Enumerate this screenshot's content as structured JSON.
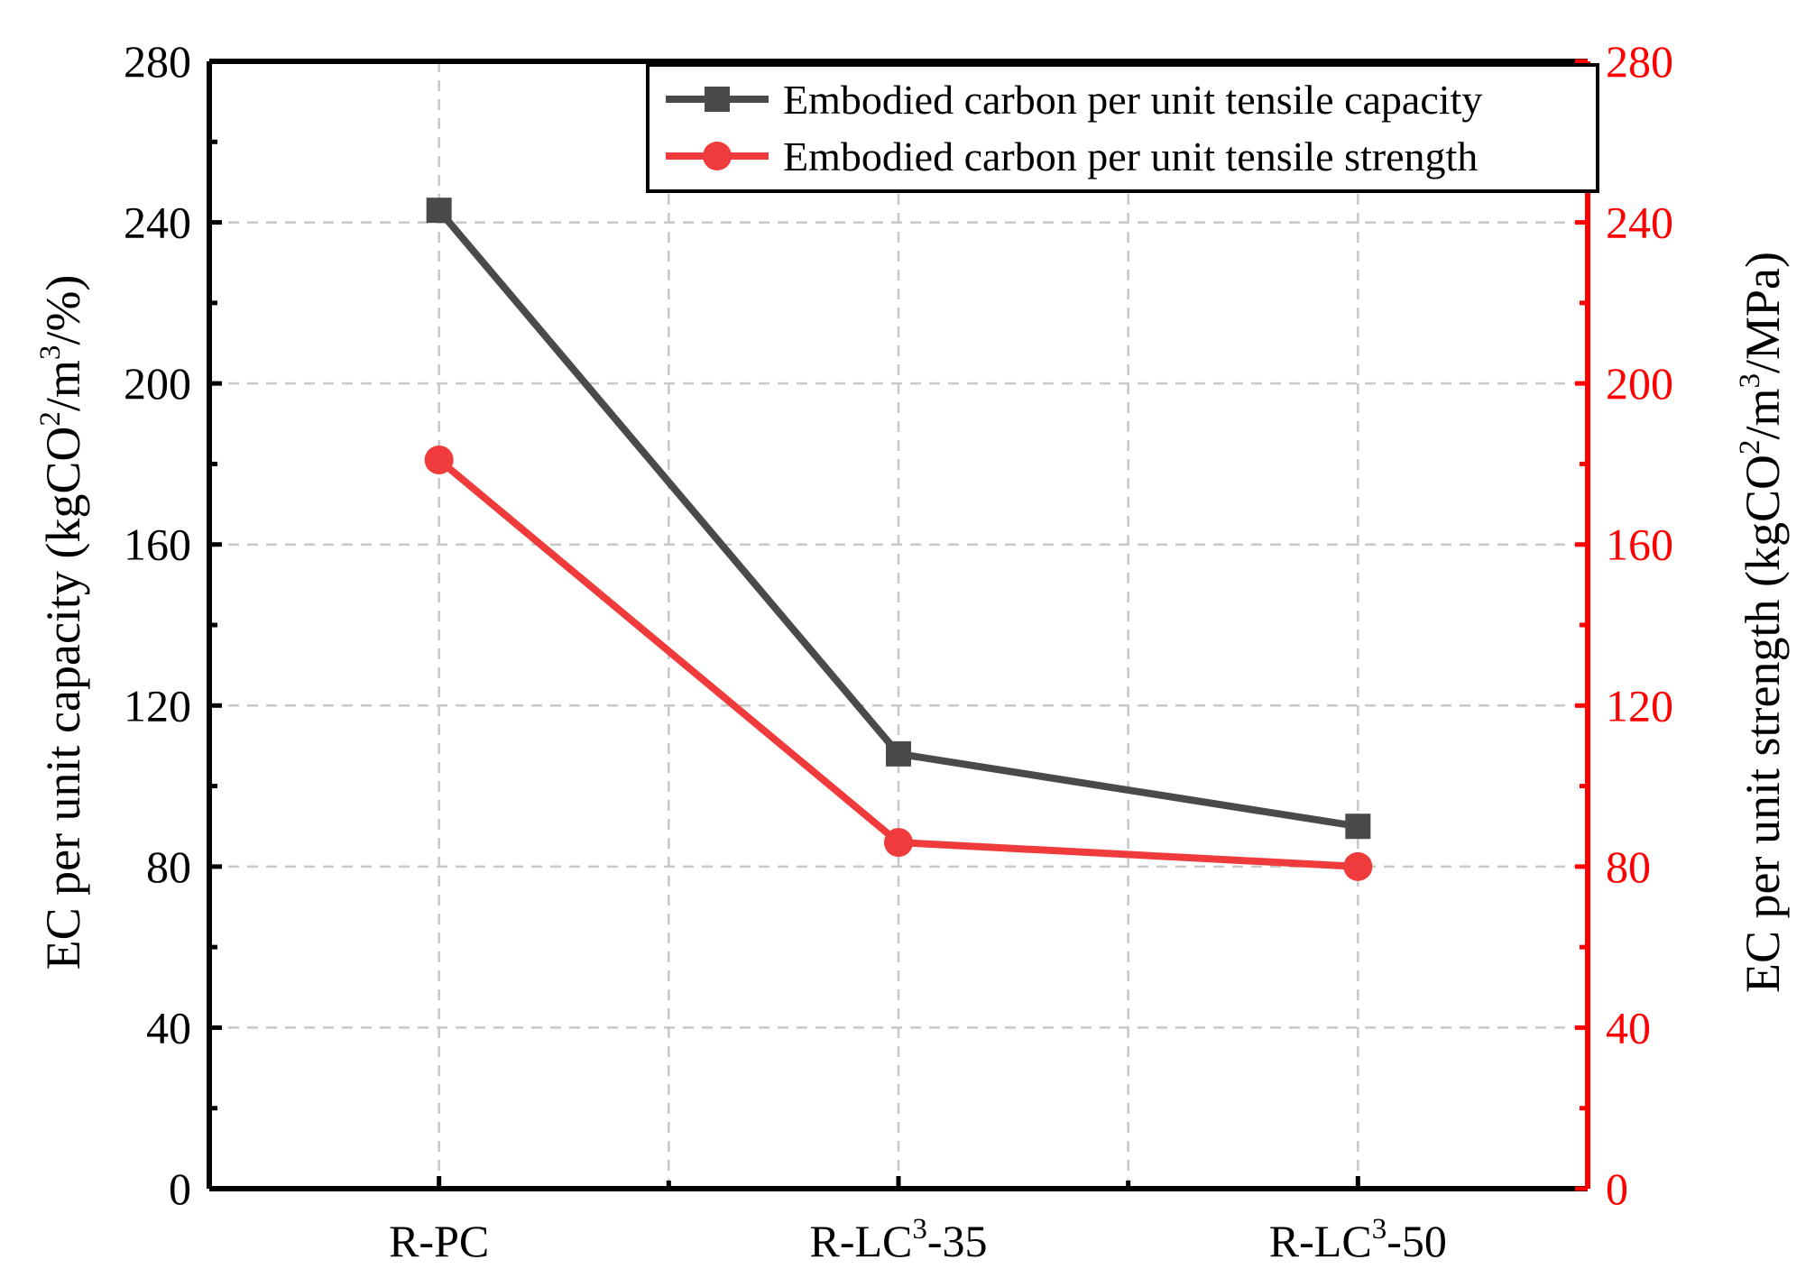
{
  "chart_data": {
    "type": "line",
    "categories": [
      "R-PC",
      "R-LC3-35",
      "R-LC3-50"
    ],
    "category_labels": [
      {
        "base": "R-PC",
        "sup": "",
        "suffix": ""
      },
      {
        "base": "R-LC",
        "sup": "3",
        "suffix": "-35"
      },
      {
        "base": "R-LC",
        "sup": "3",
        "suffix": "-50"
      }
    ],
    "series": [
      {
        "name": "Embodied carbon per unit tensile capacity",
        "values": [
          243,
          108,
          90
        ],
        "color": "#4a4a4a",
        "marker": "square",
        "axis": "left"
      },
      {
        "name": "Embodied carbon per unit tensile strength",
        "values": [
          181,
          86,
          80
        ],
        "color": "#ef3b3b",
        "marker": "circle",
        "axis": "right"
      }
    ],
    "y_left": {
      "min": 0,
      "max": 280,
      "ticks": [
        0,
        40,
        80,
        120,
        160,
        200,
        240,
        280
      ],
      "label_parts": [
        "EC per unit capacity (kgCO",
        "2",
        "/m",
        "3",
        "/%)"
      ],
      "color": "#000000"
    },
    "y_right": {
      "min": 0,
      "max": 280,
      "ticks": [
        0,
        40,
        80,
        120,
        160,
        200,
        240,
        280
      ],
      "label_parts": [
        "EC per unit strength (kgCO",
        "2",
        "/m",
        "3",
        "/MPa)"
      ],
      "color": "#ff0000"
    },
    "grid": true,
    "legend_position": "top-right"
  }
}
